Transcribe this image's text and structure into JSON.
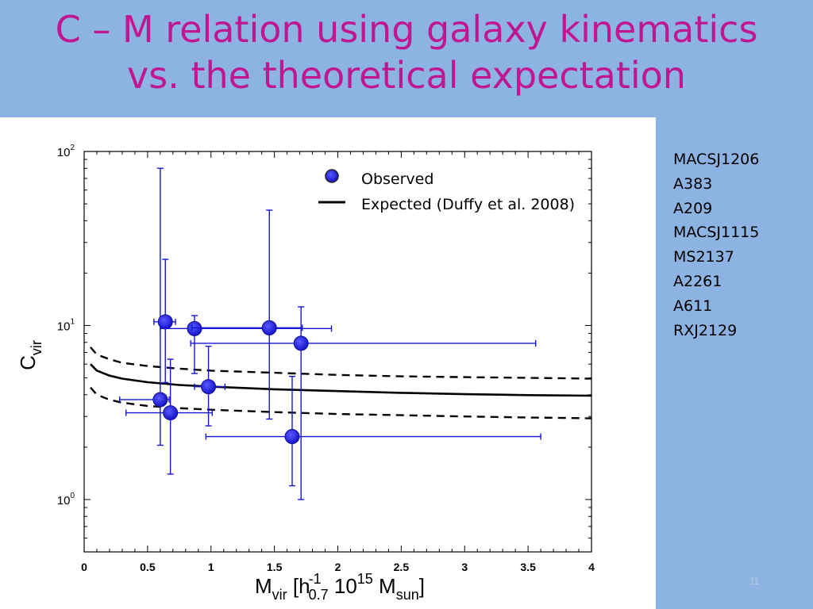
{
  "slide": {
    "title_line1": "C – M relation using galaxy kinematics",
    "title_line2": "vs. the theoretical expectation",
    "number": "11"
  },
  "clusters": [
    "MACSJ1206",
    "A383",
    "A209",
    "MACSJ1115",
    "MS2137",
    "A2261",
    "A611",
    "RXJ2129"
  ],
  "colors": {
    "observed": "#1515d6",
    "marker_edge": "#101090",
    "expected": "#000000",
    "title": "#c0168e"
  },
  "chart_data": {
    "type": "scatter",
    "title": "",
    "xlabel": {
      "base": "M",
      "sub": "vir",
      "units": "[h",
      "h_sup": "-1",
      "h_sub": "0.7",
      "power": " 10",
      "power_sup": "15",
      "unit": " M",
      "unit_sub": "sun",
      "close": "]"
    },
    "ylabel": {
      "base": "C",
      "sub": "vir"
    },
    "xlim": [
      0,
      4
    ],
    "ylim": [
      0.5,
      100
    ],
    "yscale": "log",
    "xticks": [
      0,
      0.5,
      1,
      1.5,
      2,
      2.5,
      3,
      3.5,
      4
    ],
    "xtick_labels": [
      "0",
      "0.5",
      "1",
      "1.5",
      "2",
      "2.5",
      "3",
      "3.5",
      "4"
    ],
    "yticks": [
      1,
      10,
      100
    ],
    "ytick_labels": [
      {
        "base": "10",
        "exp": "0"
      },
      {
        "base": "10",
        "exp": "1"
      },
      {
        "base": "10",
        "exp": "2"
      }
    ],
    "legend": {
      "placement": "top-right",
      "observed_label": "Observed",
      "expected_label": "Expected (Duffy et al. 2008)"
    },
    "observed": [
      {
        "x": 0.6,
        "y": 3.75,
        "xerr": [
          0.28,
          0.67
        ],
        "yerr": [
          2.05,
          80
        ]
      },
      {
        "x": 0.64,
        "y": 10.5,
        "xerr": [
          0.55,
          0.72
        ],
        "yerr": [
          4.7,
          24
        ]
      },
      {
        "x": 0.68,
        "y": 3.15,
        "xerr": [
          0.33,
          1.01
        ],
        "yerr": [
          1.4,
          6.4
        ]
      },
      {
        "x": 0.87,
        "y": 9.6,
        "xerr": [
          0.6,
          1.95
        ],
        "yerr": [
          5.3,
          11.4
        ]
      },
      {
        "x": 0.98,
        "y": 4.45,
        "xerr": [
          0.87,
          1.11
        ],
        "yerr": [
          2.65,
          7.6
        ]
      },
      {
        "x": 1.46,
        "y": 9.7,
        "xerr": [
          0.85,
          1.72
        ],
        "yerr": [
          2.9,
          46
        ]
      },
      {
        "x": 1.64,
        "y": 2.3,
        "xerr": [
          0.96,
          3.6
        ],
        "yerr": [
          1.2,
          5.1
        ]
      },
      {
        "x": 1.71,
        "y": 7.9,
        "xerr": [
          0.84,
          3.56
        ],
        "yerr": [
          1.0,
          12.8
        ]
      }
    ],
    "expected": {
      "x": [
        0.05,
        0.1,
        0.2,
        0.3,
        0.5,
        0.75,
        1.0,
        1.5,
        2.0,
        2.5,
        3.0,
        3.5,
        4.0
      ],
      "y": [
        6.0,
        5.5,
        5.15,
        4.95,
        4.72,
        4.55,
        4.45,
        4.3,
        4.2,
        4.1,
        4.03,
        3.98,
        3.95
      ]
    },
    "expected_upper": {
      "x": [
        0.05,
        0.1,
        0.2,
        0.3,
        0.5,
        0.75,
        1.0,
        1.5,
        2.0,
        2.5,
        3.0,
        3.5,
        4.0
      ],
      "y": [
        7.5,
        6.8,
        6.4,
        6.1,
        5.85,
        5.65,
        5.5,
        5.35,
        5.2,
        5.1,
        5.05,
        5.0,
        4.95
      ]
    },
    "expected_lower": {
      "x": [
        0.05,
        0.1,
        0.2,
        0.3,
        0.5,
        0.75,
        1.0,
        1.5,
        2.0,
        2.5,
        3.0,
        3.5,
        4.0
      ],
      "y": [
        4.4,
        4.0,
        3.75,
        3.6,
        3.45,
        3.35,
        3.28,
        3.18,
        3.1,
        3.05,
        3.0,
        2.96,
        2.93
      ]
    }
  }
}
